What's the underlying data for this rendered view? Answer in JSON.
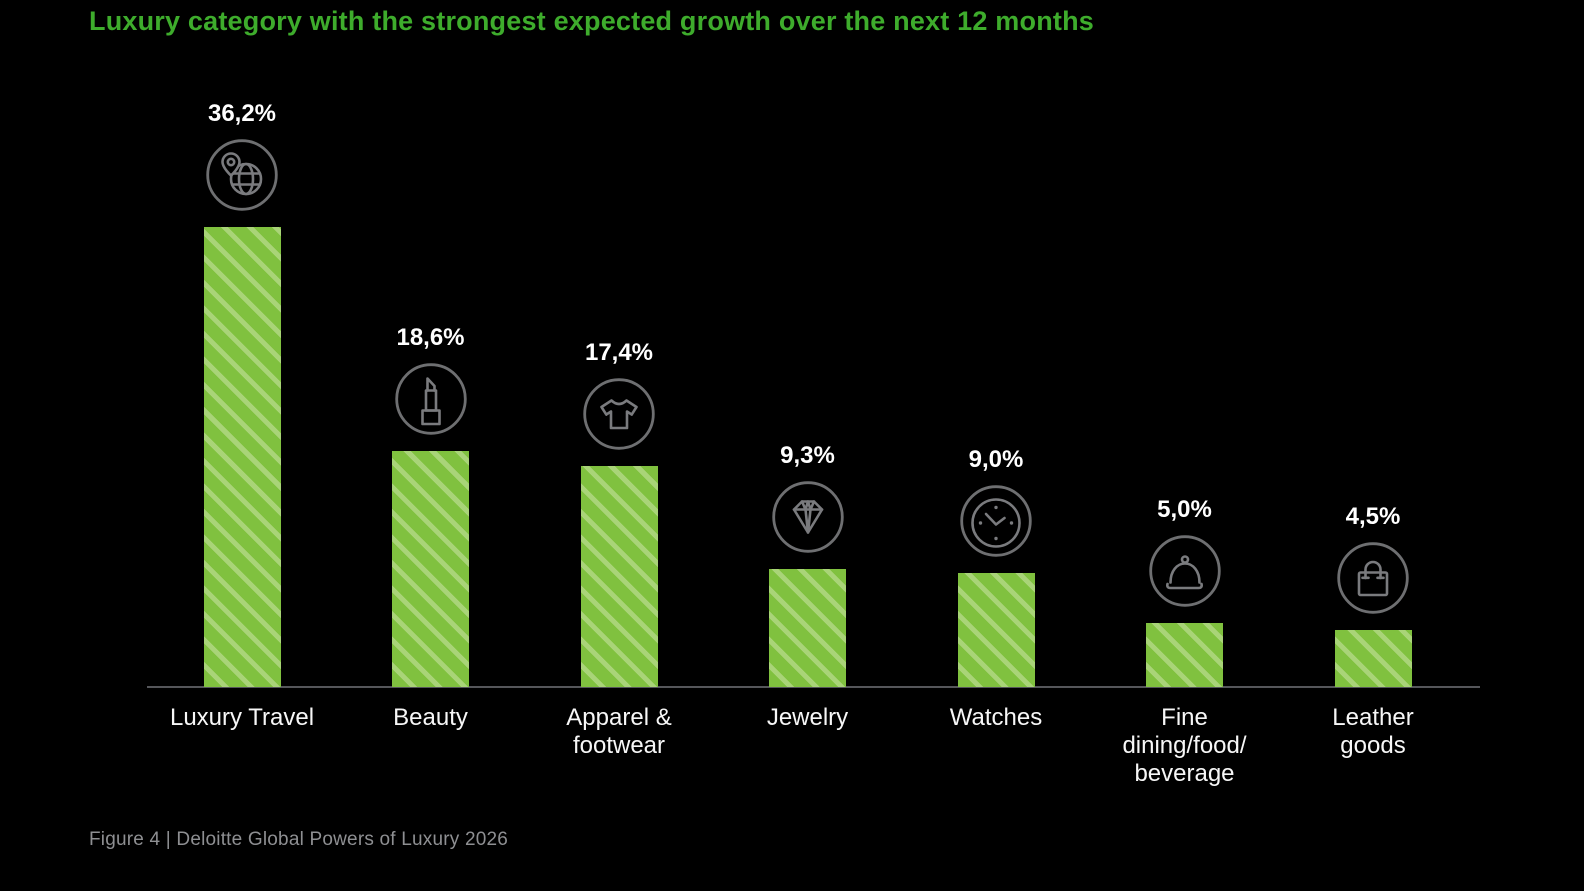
{
  "title": {
    "text": "Luxury category with the strongest expected growth over the next 12 months",
    "color": "#3EAC2C"
  },
  "footer": {
    "text": "Figure 4 | Deloitte Global Powers of Luxury 2026"
  },
  "chart_data": {
    "type": "bar",
    "title": "Luxury category with the strongest expected growth over the next 12 months",
    "categories": [
      "Luxury Travel",
      "Beauty",
      "Apparel &\nfootwear",
      "Jewelry",
      "Watches",
      "Fine\ndining/food/\nbeverage",
      "Leather\ngoods"
    ],
    "values": [
      36.2,
      18.6,
      17.4,
      9.3,
      9.0,
      5.0,
      4.5
    ],
    "value_labels": [
      "36,2%",
      "18,6%",
      "17,4%",
      "9,3%",
      "9,0%",
      "5,0%",
      "4,5%"
    ],
    "icons": [
      "travel-globe",
      "lipstick",
      "tshirt",
      "diamond",
      "watch",
      "cloche",
      "bag"
    ],
    "slugs": [
      "luxury-travel",
      "beauty",
      "apparel-footwear",
      "jewelry",
      "watches",
      "fine-dining-food-beverage",
      "leather-goods"
    ],
    "xlabel": "",
    "ylabel": "",
    "ylim": [
      0,
      40
    ],
    "grid": false,
    "legend": false,
    "background_color": "#000000",
    "bar_color": "#80C13F",
    "bar_stripe_color": "#A9D478",
    "icon_circle_color": "#6E6F71",
    "icon_stroke_color": "#7A7B7E",
    "value_label_color": "#FFFFFF",
    "category_label_color": "#F7F7F7",
    "axis_line_color": "#55565A"
  }
}
